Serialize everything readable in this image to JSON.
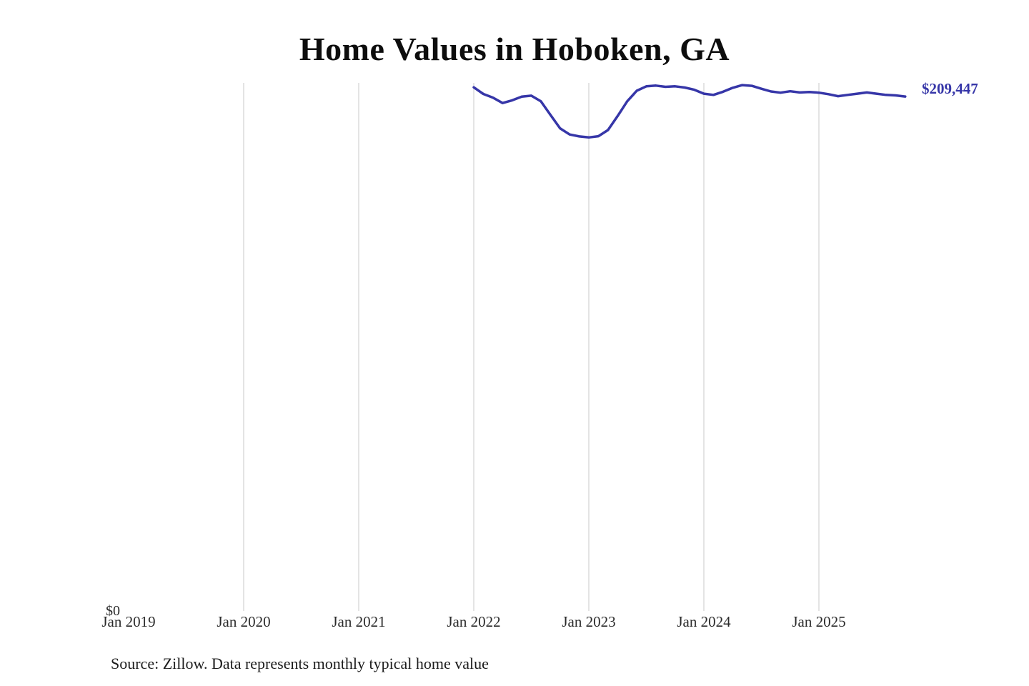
{
  "source": "Source: Zillow. Data represents monthly typical home value",
  "chart_data": {
    "type": "line",
    "title": "Home Values in Hoboken, GA",
    "xlabel": "",
    "ylabel": "",
    "ylim": [
      0,
      215000
    ],
    "grid": "vertical-only",
    "line_color": "#3636a8",
    "grid_color": "#c9c9c9",
    "y0_label": "$0",
    "end_label": "$209,447",
    "end_value": 209447,
    "x_ticks": [
      "Jan 2019",
      "Jan 2020",
      "Jan 2021",
      "Jan 2022",
      "Jan 2023",
      "Jan 2024",
      "Jan 2025"
    ],
    "series": [
      {
        "name": "Monthly typical home value",
        "start_month": "2022-01",
        "end_month": "2025-10",
        "values": [
          213200,
          210500,
          209000,
          206800,
          207900,
          209400,
          209800,
          207500,
          202000,
          196500,
          194000,
          193200,
          192800,
          193300,
          195800,
          201500,
          207500,
          211800,
          213600,
          213900,
          213400,
          213600,
          213100,
          212200,
          210600,
          210100,
          211400,
          213000,
          214100,
          213800,
          212600,
          211500,
          211000,
          211600,
          211100,
          211300,
          211000,
          210400,
          209600,
          210100,
          210600,
          211100,
          210600,
          210100,
          209900,
          209447
        ]
      }
    ]
  }
}
